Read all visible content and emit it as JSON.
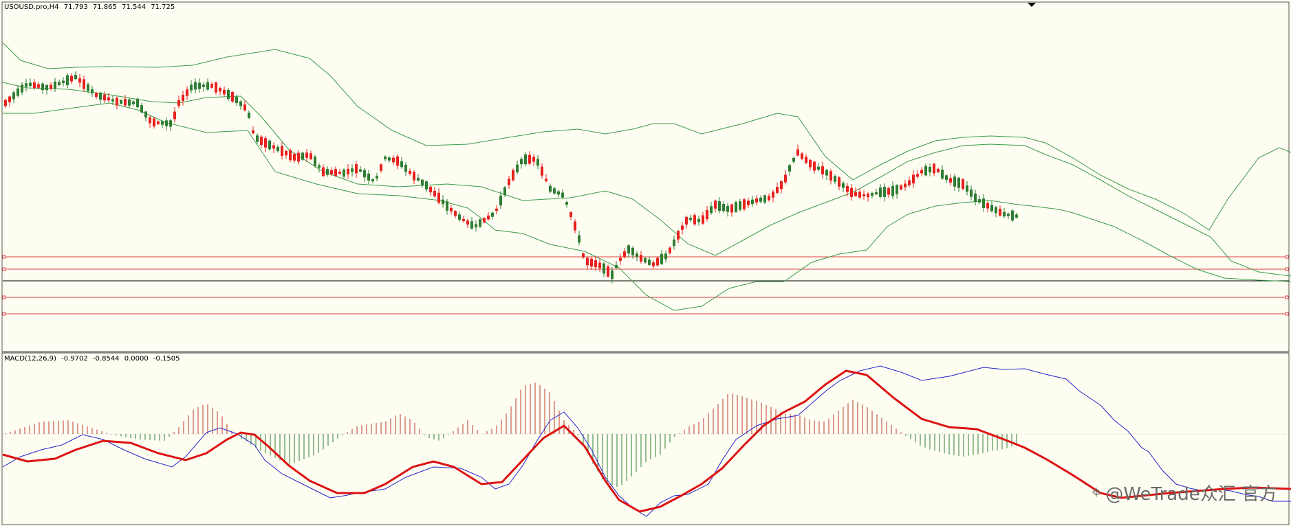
{
  "main_chart": {
    "symbol_timeframe": "USOUSD.pro,H4",
    "ohlc": [
      "71.793",
      "71.865",
      "71.544",
      "71.725"
    ]
  },
  "macd": {
    "label": "MACD(12,26,9)",
    "values": [
      "-0.9702",
      "-0.8544",
      "0.0000",
      "-0.1505"
    ]
  },
  "watermark": {
    "icon": "weibo-icon",
    "text": "@WeTrade众汇 官方"
  },
  "colors": {
    "background": "#fdfdf2",
    "bull": "#e8221e",
    "bear": "#2e7d32",
    "bands": "#3a9a48",
    "level_line": "#e04040",
    "current_price_line": "#000000",
    "macd_signal": "#dd1111",
    "macd_main": "#2222cc"
  }
}
